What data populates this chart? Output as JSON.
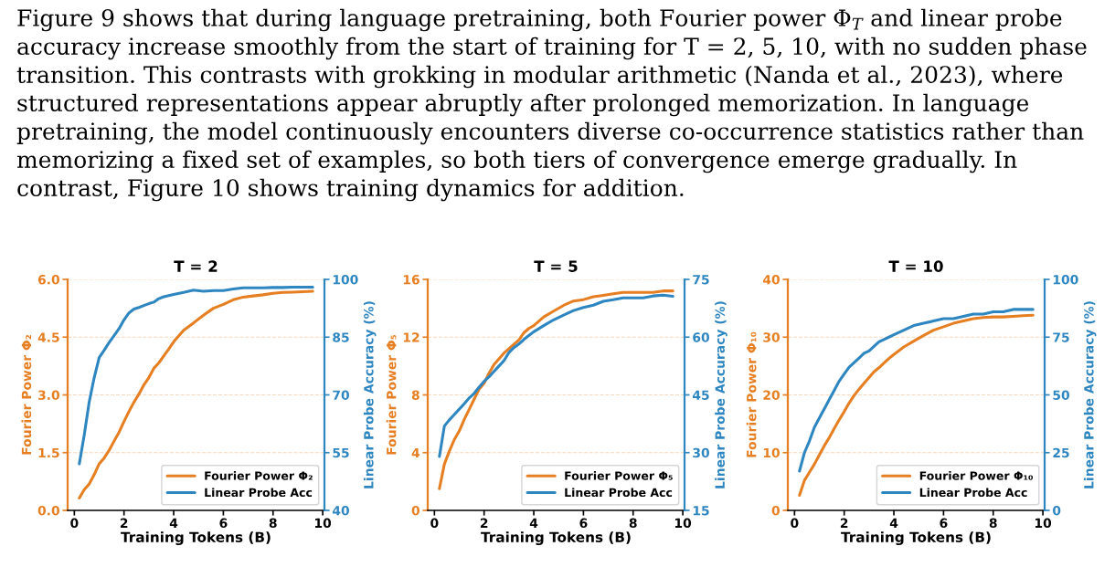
{
  "chart_data": [
    {
      "type": "other",
      "annotations": [
        "Figure 9 shows that during language pretraining, both Fourier power Φ$_{T}$ and linear probe",
        "accuracy increase smoothly from the start of training for T = 2, 5, 10, with no sudden phase",
        "transition. This contrasts with grokking in modular arithmetic (Nanda et al., 2023), where",
        "structured representations appear abruptly after prolonged memorization. In language",
        "pretraining, the model continuously encounters diverse co-occurrence statistics rather than",
        "memorizing a fixed set of examples, so both tiers of convergence emerge gradually. In",
        "contrast, Figure 10 shows training dynamics for addition."
      ]
    },
    {
      "type": "line",
      "title": "T = 2",
      "xlabel": "Training Tokens (B)",
      "ylabel": "Fourier Power Φ₂",
      "y2label": "Linear Probe Accuracy (%)",
      "x": [
        0.2,
        0.4,
        0.6,
        0.8,
        1.0,
        1.2,
        1.4,
        1.6,
        1.8,
        2.0,
        2.2,
        2.4,
        2.6,
        2.8,
        3.0,
        3.2,
        3.4,
        3.6,
        3.8,
        4.0,
        4.4,
        4.8,
        5.2,
        5.6,
        6.0,
        6.4,
        6.8,
        7.2,
        7.6,
        8.0,
        8.4,
        8.8,
        9.2,
        9.6
      ],
      "series": [
        {
          "name": "Fourier Power Φ₂",
          "color": "#e67e22",
          "values": [
            0.32,
            0.54,
            0.69,
            0.93,
            1.21,
            1.36,
            1.56,
            1.8,
            2.03,
            2.31,
            2.57,
            2.81,
            3.02,
            3.26,
            3.45,
            3.69,
            3.83,
            4.01,
            4.19,
            4.38,
            4.68,
            4.87,
            5.07,
            5.25,
            5.35,
            5.47,
            5.54,
            5.57,
            5.6,
            5.64,
            5.66,
            5.67,
            5.68,
            5.69
          ]
        },
        {
          "name": "Linear Probe Acc",
          "color": "#2e86c1",
          "axis": "y2",
          "values": [
            52.1,
            59.6,
            68.2,
            74.5,
            79.7,
            81.6,
            83.6,
            85.4,
            87.2,
            89.5,
            91.3,
            92.3,
            92.7,
            93.2,
            93.7,
            94.1,
            95.0,
            95.5,
            95.8,
            96.1,
            96.6,
            97.2,
            96.9,
            97.1,
            97.1,
            97.5,
            97.8,
            97.8,
            97.8,
            97.9,
            97.9,
            98.0,
            98.0,
            98.0
          ]
        }
      ],
      "xlim": [
        -0.27,
        10.07
      ],
      "xticks": [
        0,
        2,
        4,
        6,
        8,
        10
      ],
      "ylim": [
        0,
        6
      ],
      "yticks": [
        {
          "value": 0,
          "label": "0.0"
        },
        1.5,
        {
          "value": 3,
          "label": "3.0"
        },
        4.5,
        {
          "value": 6,
          "label": "6.0"
        }
      ],
      "y2lim": [
        40,
        100
      ],
      "y2ticks": [
        40,
        55,
        70,
        85,
        100
      ],
      "grid": "y",
      "legend": "bottom right"
    },
    {
      "type": "line",
      "title": "T = 5",
      "xlabel": "Training Tokens (B)",
      "ylabel": "Fourier Power Φ₅",
      "y2label": "Linear Probe Accuracy (%)",
      "x": [
        0.2,
        0.4,
        0.6,
        0.8,
        1.0,
        1.2,
        1.4,
        1.6,
        1.8,
        2.0,
        2.2,
        2.4,
        2.6,
        2.8,
        3.0,
        3.2,
        3.4,
        3.6,
        3.8,
        4.0,
        4.4,
        4.8,
        5.2,
        5.6,
        6.0,
        6.4,
        6.8,
        7.2,
        7.6,
        8.0,
        8.4,
        8.8,
        9.2,
        9.6
      ],
      "series": [
        {
          "name": "Fourier Power Φ₅",
          "color": "#e67e22",
          "values": [
            1.5,
            3.2,
            4.1,
            4.9,
            5.5,
            6.3,
            7.0,
            7.7,
            8.4,
            8.8,
            9.5,
            10.1,
            10.5,
            10.9,
            11.2,
            11.5,
            11.8,
            12.3,
            12.6,
            12.8,
            13.4,
            13.8,
            14.2,
            14.5,
            14.6,
            14.8,
            14.9,
            15.0,
            15.1,
            15.1,
            15.1,
            15.1,
            15.2,
            15.2
          ]
        },
        {
          "name": "Linear Probe Acc",
          "color": "#2e86c1",
          "axis": "y2",
          "values": [
            29.0,
            36.9,
            38.5,
            39.9,
            41.3,
            42.7,
            44.2,
            45.4,
            47.0,
            48.5,
            49.7,
            51.1,
            52.5,
            53.9,
            56.0,
            57.3,
            58.2,
            59.4,
            60.4,
            61.4,
            63.0,
            64.5,
            65.7,
            66.9,
            67.7,
            68.3,
            69.3,
            69.7,
            70.2,
            70.2,
            70.2,
            70.7,
            70.9,
            70.6
          ]
        }
      ],
      "xlim": [
        -0.27,
        10.07
      ],
      "xticks": [
        0,
        2,
        4,
        6,
        8,
        10
      ],
      "ylim": [
        0,
        16
      ],
      "yticks": [
        0,
        4,
        8,
        12,
        16
      ],
      "y2lim": [
        15,
        75
      ],
      "y2ticks": [
        15,
        30,
        45,
        60,
        75
      ],
      "grid": "y",
      "legend": "bottom right"
    },
    {
      "type": "line",
      "title": "T = 10",
      "xlabel": "Training Tokens (B)",
      "ylabel": "Fourier Power Φ₁₀",
      "y2label": "Linear Probe Accuracy (%)",
      "x": [
        0.2,
        0.4,
        0.6,
        0.8,
        1.0,
        1.2,
        1.4,
        1.6,
        1.8,
        2.0,
        2.2,
        2.4,
        2.6,
        2.8,
        3.0,
        3.2,
        3.4,
        3.6,
        3.8,
        4.0,
        4.4,
        4.8,
        5.2,
        5.6,
        6.0,
        6.4,
        6.8,
        7.2,
        7.6,
        8.0,
        8.4,
        8.8,
        9.2,
        9.6
      ],
      "series": [
        {
          "name": "Fourier Power Φ₁₀",
          "color": "#e67e22",
          "values": [
            2.6,
            5.2,
            6.6,
            8.0,
            9.6,
            11.2,
            12.6,
            14.2,
            15.7,
            17.1,
            18.6,
            19.9,
            21.0,
            22.0,
            23.0,
            24.0,
            24.7,
            25.5,
            26.3,
            27.0,
            28.3,
            29.3,
            30.3,
            31.2,
            31.8,
            32.4,
            32.8,
            33.2,
            33.4,
            33.5,
            33.5,
            33.6,
            33.7,
            33.8
          ]
        },
        {
          "name": "Linear Probe Acc",
          "color": "#2e86c1",
          "axis": "y2",
          "values": [
            17,
            25,
            30,
            36,
            40,
            44,
            48,
            52,
            56,
            59,
            62,
            64,
            66,
            68,
            69,
            71,
            73,
            74,
            75,
            76,
            78,
            80,
            81,
            82,
            83,
            83,
            84,
            85,
            85,
            86,
            86,
            87,
            87,
            87
          ]
        }
      ],
      "xlim": [
        -0.27,
        10.07
      ],
      "xticks": [
        0,
        2,
        4,
        6,
        8,
        10
      ],
      "ylim": [
        0,
        40
      ],
      "yticks": [
        0,
        10,
        20,
        30,
        40
      ],
      "y2lim": [
        0,
        100
      ],
      "y2ticks": [
        0,
        25,
        50,
        75,
        100
      ],
      "grid": "y",
      "legend": "bottom right"
    }
  ]
}
